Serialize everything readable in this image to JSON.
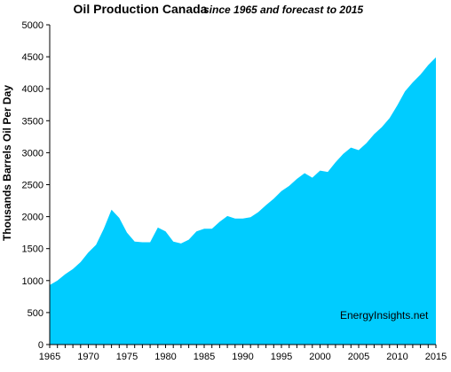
{
  "chart_data": {
    "type": "area",
    "title": "Oil Production Canada",
    "subtitle": "since 1965 and forecast to 2015",
    "xlabel": "",
    "ylabel": "Thousands Barrels Oil Per Day",
    "xlim": [
      1965,
      2015
    ],
    "ylim": [
      0,
      5000
    ],
    "grid": false,
    "legend": "none",
    "x_ticks": [
      "1965",
      "1970",
      "1975",
      "1980",
      "1985",
      "1990",
      "1995",
      "2000",
      "2005",
      "2010",
      "2015"
    ],
    "y_ticks": [
      "0",
      "500",
      "1000",
      "1500",
      "2000",
      "2500",
      "3000",
      "3500",
      "4000",
      "4500",
      "5000"
    ],
    "fill_color": "#00ccff",
    "annotation": "EnergyInsights.net",
    "x": [
      1965,
      1966,
      1967,
      1968,
      1969,
      1970,
      1971,
      1972,
      1973,
      1974,
      1975,
      1976,
      1977,
      1978,
      1979,
      1980,
      1981,
      1982,
      1983,
      1984,
      1985,
      1986,
      1987,
      1988,
      1989,
      1990,
      1991,
      1992,
      1993,
      1994,
      1995,
      1996,
      1997,
      1998,
      1999,
      2000,
      2001,
      2002,
      2003,
      2004,
      2005,
      2006,
      2007,
      2008,
      2009,
      2010,
      2011,
      2012,
      2013,
      2014,
      2015
    ],
    "values": [
      930,
      1000,
      1100,
      1180,
      1290,
      1440,
      1560,
      1810,
      2110,
      1980,
      1750,
      1610,
      1600,
      1600,
      1830,
      1770,
      1610,
      1580,
      1640,
      1770,
      1810,
      1810,
      1920,
      2010,
      1970,
      1970,
      1990,
      2070,
      2180,
      2280,
      2400,
      2480,
      2590,
      2680,
      2610,
      2720,
      2700,
      2850,
      2980,
      3080,
      3040,
      3150,
      3290,
      3400,
      3540,
      3740,
      3960,
      4100,
      4220,
      4370,
      4490
    ]
  }
}
